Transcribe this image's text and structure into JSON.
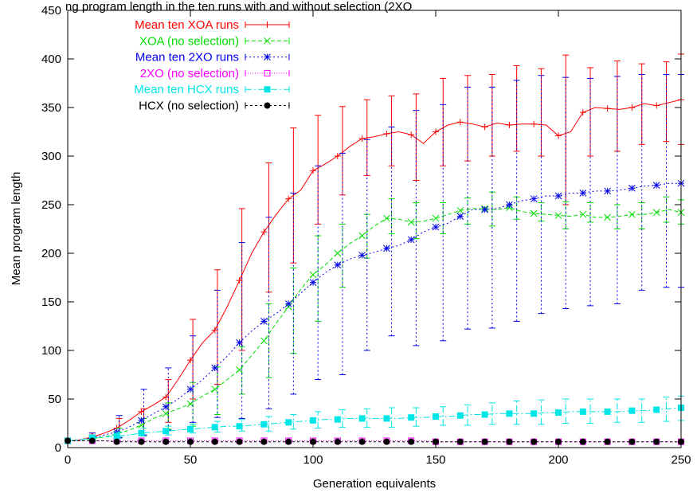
{
  "caption": "ng program length in the ten runs with and without selection (2XO",
  "chart_data": {
    "type": "line",
    "title": "",
    "xlabel": "Generation equivalents",
    "ylabel": "Mean program length",
    "xlim": [
      0,
      250
    ],
    "ylim": [
      0,
      450
    ],
    "xticks": [
      0,
      50,
      100,
      150,
      200,
      250
    ],
    "yticks": [
      0,
      50,
      100,
      150,
      200,
      250,
      300,
      350,
      400,
      450
    ],
    "grid": false,
    "legend_position": "top-left",
    "series": [
      {
        "name": "Mean ten XOA runs",
        "color": "#ff0000",
        "marker": "plus",
        "dash": "solid",
        "x": [
          0,
          5,
          10,
          15,
          20,
          25,
          30,
          35,
          40,
          45,
          50,
          55,
          60,
          65,
          70,
          75,
          80,
          85,
          90,
          95,
          100,
          105,
          110,
          115,
          120,
          125,
          130,
          135,
          140,
          145,
          150,
          155,
          160,
          165,
          170,
          175,
          180,
          185,
          190,
          195,
          200,
          205,
          210,
          215,
          220,
          225,
          230,
          235,
          240,
          245,
          250
        ],
        "y": [
          7,
          8,
          11,
          15,
          20,
          28,
          37,
          44,
          52,
          70,
          90,
          108,
          121,
          145,
          172,
          200,
          222,
          240,
          256,
          265,
          285,
          292,
          300,
          310,
          318,
          320,
          323,
          325,
          322,
          313,
          325,
          332,
          335,
          333,
          330,
          334,
          332,
          333,
          333,
          332,
          321,
          325,
          345,
          350,
          349,
          348,
          350,
          354,
          352,
          355,
          358
        ],
        "err_x": [
          10,
          21,
          31,
          41,
          51,
          61,
          71,
          82,
          92,
          102,
          112,
          122,
          132,
          142,
          153,
          163,
          173,
          183,
          193,
          203,
          213,
          224,
          234,
          244,
          250
        ],
        "err_low": [
          8,
          10,
          12,
          26,
          50,
          65,
          100,
          160,
          190,
          230,
          260,
          280,
          290,
          275,
          290,
          295,
          300,
          305,
          300,
          250,
          300,
          305,
          312,
          315,
          312
        ],
        "err_high": [
          15,
          30,
          40,
          70,
          132,
          183,
          246,
          293,
          329,
          342,
          351,
          358,
          362,
          364,
          380,
          383,
          384,
          393,
          390,
          404,
          391,
          398,
          395,
          397,
          405
        ]
      },
      {
        "name": "XOA (no selection)",
        "color": "#00dd00",
        "marker": "x",
        "dash": "5,3",
        "x": [
          0,
          5,
          10,
          15,
          20,
          25,
          30,
          35,
          40,
          45,
          50,
          55,
          60,
          65,
          70,
          75,
          80,
          85,
          90,
          95,
          100,
          105,
          110,
          115,
          120,
          125,
          130,
          135,
          140,
          145,
          150,
          155,
          160,
          165,
          170,
          175,
          180,
          185,
          190,
          195,
          200,
          205,
          210,
          215,
          220,
          225,
          230,
          235,
          240,
          245,
          250
        ],
        "y": [
          7,
          8,
          9,
          11,
          14,
          18,
          23,
          30,
          35,
          40,
          45,
          53,
          60,
          70,
          80,
          95,
          110,
          128,
          145,
          163,
          178,
          188,
          200,
          210,
          218,
          228,
          236,
          235,
          232,
          233,
          236,
          240,
          244,
          246,
          246,
          245,
          247,
          243,
          241,
          240,
          239,
          238,
          240,
          237,
          237,
          238,
          240,
          240,
          242,
          245,
          242
        ],
        "err_x": [
          10,
          21,
          31,
          41,
          51,
          61,
          71,
          82,
          92,
          102,
          112,
          122,
          132,
          142,
          153,
          163,
          173,
          183,
          193,
          203,
          213,
          224,
          234,
          244,
          250
        ],
        "err_low": [
          8,
          10,
          13,
          19,
          22,
          34,
          55,
          72,
          97,
          130,
          165,
          195,
          220,
          215,
          220,
          230,
          228,
          235,
          233,
          225,
          232,
          225,
          225,
          232,
          230
        ],
        "err_high": [
          13,
          20,
          30,
          46,
          67,
          83,
          104,
          148,
          185,
          218,
          230,
          240,
          256,
          252,
          252,
          257,
          263,
          258,
          252,
          253,
          252,
          250,
          252,
          258,
          255
        ]
      },
      {
        "name": "Mean ten 2XO runs",
        "color": "#0000ee",
        "marker": "star",
        "dash": "2,3",
        "x": [
          0,
          5,
          10,
          15,
          20,
          25,
          30,
          35,
          40,
          45,
          50,
          55,
          60,
          65,
          70,
          75,
          80,
          85,
          90,
          95,
          100,
          105,
          110,
          115,
          120,
          125,
          130,
          135,
          140,
          145,
          150,
          155,
          160,
          165,
          170,
          175,
          180,
          185,
          190,
          195,
          200,
          205,
          210,
          215,
          220,
          225,
          230,
          235,
          240,
          245,
          250
        ],
        "y": [
          7,
          8,
          10,
          13,
          16,
          21,
          28,
          35,
          42,
          50,
          60,
          70,
          82,
          94,
          108,
          120,
          130,
          138,
          148,
          159,
          170,
          180,
          188,
          194,
          198,
          201,
          205,
          208,
          214,
          222,
          227,
          231,
          238,
          245,
          245,
          246,
          250,
          254,
          256,
          259,
          259,
          262,
          262,
          264,
          264,
          265,
          267,
          269,
          270,
          272,
          272
        ],
        "err_x": [
          10,
          21,
          31,
          41,
          51,
          61,
          71,
          82,
          92,
          102,
          112,
          122,
          132,
          142,
          153,
          163,
          173,
          183,
          193,
          203,
          213,
          224,
          234,
          244,
          250
        ],
        "err_low": [
          8,
          10,
          13,
          18,
          26,
          31,
          30,
          40,
          55,
          70,
          75,
          100,
          115,
          105,
          110,
          122,
          123,
          130,
          138,
          143,
          146,
          148,
          162,
          165,
          165
        ],
        "err_high": [
          15,
          33,
          60,
          82,
          115,
          162,
          211,
          237,
          262,
          290,
          303,
          317,
          330,
          347,
          353,
          371,
          371,
          378,
          383,
          381,
          380,
          382,
          384,
          384,
          384
        ]
      },
      {
        "name": "2XO (no selection)",
        "color": "#ff00ff",
        "marker": "box",
        "dash": "1,2",
        "x": [
          0,
          5,
          10,
          15,
          20,
          25,
          30,
          35,
          40,
          45,
          50,
          55,
          60,
          65,
          70,
          75,
          80,
          85,
          90,
          95,
          100,
          105,
          110,
          115,
          120,
          125,
          130,
          135,
          140,
          145,
          150,
          155,
          160,
          165,
          170,
          175,
          180,
          185,
          190,
          195,
          200,
          205,
          210,
          215,
          220,
          225,
          230,
          235,
          240,
          245,
          250
        ],
        "y": [
          7,
          7,
          7,
          7,
          7,
          7,
          7,
          7,
          7,
          7,
          7,
          7,
          7,
          7,
          7,
          7,
          7,
          7,
          7,
          7,
          7,
          7,
          7,
          7,
          7,
          7,
          7,
          7,
          7,
          7,
          6,
          6,
          6,
          6,
          6,
          6,
          6,
          6,
          6,
          6,
          6,
          6,
          6,
          6,
          6,
          6,
          6,
          6,
          6,
          6,
          6
        ],
        "err_x": [],
        "err_low": [],
        "err_high": []
      },
      {
        "name": "Mean ten HCX runs",
        "color": "#00e5e5",
        "marker": "filled-box",
        "dash": "8,3,2,3",
        "x": [
          0,
          5,
          10,
          15,
          20,
          25,
          30,
          35,
          40,
          45,
          50,
          55,
          60,
          65,
          70,
          75,
          80,
          85,
          90,
          95,
          100,
          105,
          110,
          115,
          120,
          125,
          130,
          135,
          140,
          145,
          150,
          155,
          160,
          165,
          170,
          175,
          180,
          185,
          190,
          195,
          200,
          205,
          210,
          215,
          220,
          225,
          230,
          235,
          240,
          245,
          250
        ],
        "y": [
          7,
          8,
          10,
          11,
          12,
          13,
          15,
          16,
          17,
          18,
          19,
          20,
          21,
          22,
          22,
          23,
          24,
          25,
          26,
          27,
          28,
          29,
          29,
          30,
          30,
          30,
          30,
          30,
          31,
          31,
          32,
          32,
          33,
          34,
          34,
          35,
          35,
          35,
          35,
          36,
          36,
          37,
          37,
          37,
          37,
          37,
          38,
          38,
          39,
          40,
          41
        ],
        "err_x": [
          10,
          21,
          31,
          41,
          51,
          61,
          71,
          82,
          92,
          102,
          112,
          122,
          132,
          142,
          153,
          163,
          173,
          183,
          193,
          203,
          213,
          224,
          234,
          244,
          250
        ],
        "err_low": [
          9,
          11,
          12,
          13,
          15,
          16,
          17,
          17,
          19,
          20,
          21,
          21,
          21,
          22,
          23,
          23,
          24,
          24,
          24,
          25,
          25,
          26,
          26,
          27,
          28
        ],
        "err_high": [
          12,
          16,
          20,
          22,
          24,
          27,
          29,
          32,
          34,
          37,
          39,
          40,
          41,
          41,
          42,
          44,
          46,
          48,
          49,
          50,
          50,
          50,
          50,
          52,
          53
        ]
      },
      {
        "name": "HCX (no selection)",
        "color": "#000000",
        "marker": "dot",
        "dash": "3,3",
        "x": [
          0,
          5,
          10,
          15,
          20,
          25,
          30,
          35,
          40,
          45,
          50,
          55,
          60,
          65,
          70,
          75,
          80,
          85,
          90,
          95,
          100,
          105,
          110,
          115,
          120,
          125,
          130,
          135,
          140,
          145,
          150,
          155,
          160,
          165,
          170,
          175,
          180,
          185,
          190,
          195,
          200,
          205,
          210,
          215,
          220,
          225,
          230,
          235,
          240,
          245,
          250
        ],
        "y": [
          7,
          7,
          7,
          7,
          6,
          6,
          6,
          6,
          6,
          6,
          6,
          6,
          6,
          6,
          6,
          6,
          6,
          6,
          6,
          6,
          6,
          6,
          6,
          6,
          6,
          6,
          6,
          6,
          6,
          6,
          6,
          6,
          6,
          6,
          6,
          6,
          6,
          6,
          6,
          6,
          6,
          6,
          6,
          6,
          6,
          6,
          6,
          6,
          6,
          6,
          6
        ],
        "err_x": [],
        "err_low": [],
        "err_high": []
      }
    ]
  }
}
